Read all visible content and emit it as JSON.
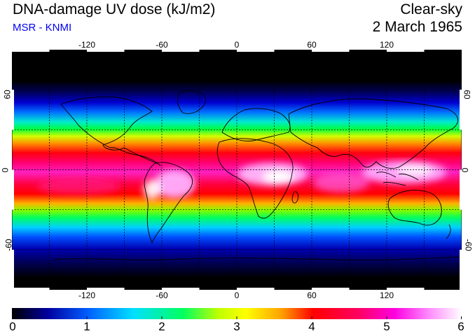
{
  "header": {
    "title": "DNA-damage UV dose (kJ/m2)",
    "subtitle": "MSR - KNMI",
    "condition": "Clear-sky",
    "date": "2 March 1965"
  },
  "map": {
    "projection": "equirectangular",
    "lon_range": [
      -180,
      180
    ],
    "lat_range": [
      -90,
      90
    ],
    "grid": true,
    "lon_ticks": [
      "-120",
      "-60",
      "0",
      "60",
      "120"
    ],
    "lat_ticks": [
      "60",
      "0",
      "-60"
    ],
    "lat_ticks_right": [
      "60",
      "0",
      "-60"
    ],
    "colormap_stops": [
      "#000000",
      "#0000a0",
      "#0060ff",
      "#00e0ff",
      "#00ff60",
      "#c0ff00",
      "#ffff00",
      "#ffa000",
      "#ff0000",
      "#ff0060",
      "#ff00e0",
      "#ff90ff",
      "#ffffff"
    ]
  },
  "colorbar": {
    "min": 0,
    "max": 6,
    "labels": [
      "0",
      "1",
      "2",
      "3",
      "4",
      "5",
      "6"
    ]
  }
}
